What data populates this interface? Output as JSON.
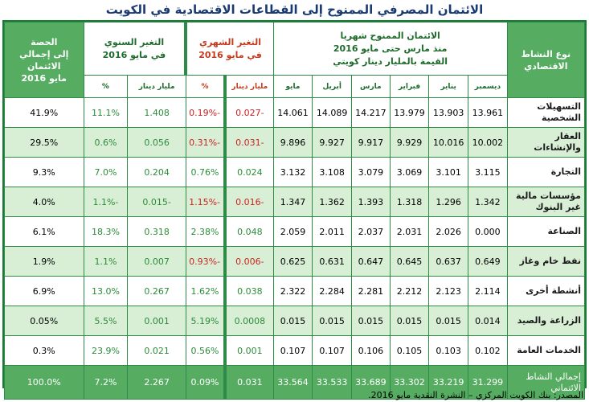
{
  "title": "الائتمان المصرفي الممنوح إلى القطاعات الاقتصادية في الكويت",
  "headers": {
    "activity": "نوع النشاط الاقتصادي",
    "monthly_credit_l1": "الائتمان الممنوح شهريا",
    "monthly_credit_l2": "منذ مارس حتى مايو 2016",
    "monthly_credit_l3": "القيمة بالمليار دينار كويتي",
    "monthly_change_l1": "التغير الشهري",
    "monthly_change_l2": "في مايو 2016",
    "annual_change_l1": "التغير السنوي",
    "annual_change_l2": "في مايو 2016",
    "share_l1": "الحصة",
    "share_l2": "إلى إجمالي الائتمان",
    "share_l3": "مايو 2016"
  },
  "months": [
    "ديسمبر",
    "يناير",
    "فبراير",
    "مارس",
    "أبريل",
    "مايو"
  ],
  "sub_headers": {
    "billion_dinar": "مليار دينار",
    "percent": "%"
  },
  "rows": [
    {
      "label": "التسهيلات الشخصية",
      "values": [
        "13.961",
        "13.903",
        "13.979",
        "14.217",
        "14.089",
        "14.061"
      ],
      "m_val": "-0.027",
      "m_pct": "-0.19%",
      "a_val": "1.408",
      "a_pct": "11.1%",
      "share": "41.9%",
      "alt": false
    },
    {
      "label": "العقار والإنشاءات",
      "values": [
        "10.002",
        "10.016",
        "9.929",
        "9.917",
        "9.927",
        "9.896"
      ],
      "m_val": "-0.031",
      "m_pct": "-0.31%",
      "a_val": "0.056",
      "a_pct": "0.6%",
      "share": "29.5%",
      "alt": true
    },
    {
      "label": "التجارة",
      "values": [
        "3.115",
        "3.101",
        "3.069",
        "3.079",
        "3.108",
        "3.132"
      ],
      "m_val": "0.024",
      "m_pct": "0.76%",
      "a_val": "0.204",
      "a_pct": "7.0%",
      "share": "9.3%",
      "alt": false
    },
    {
      "label": "مؤسسات مالية غير البنوك",
      "values": [
        "1.342",
        "1.296",
        "1.318",
        "1.393",
        "1.362",
        "1.347"
      ],
      "m_val": "-0.016",
      "m_pct": "-1.15%",
      "a_val": "-0.015",
      "a_pct": "-1.1%",
      "share": "4.0%",
      "alt": true
    },
    {
      "label": "الصناعة",
      "values": [
        "0.000",
        "2.026",
        "2.031",
        "2.037",
        "2.011",
        "2.059"
      ],
      "m_val": "0.048",
      "m_pct": "2.38%",
      "a_val": "0.318",
      "a_pct": "18.3%",
      "share": "6.1%",
      "alt": false
    },
    {
      "label": "نفط خام وغاز",
      "values": [
        "0.649",
        "0.637",
        "0.645",
        "0.647",
        "0.631",
        "0.625"
      ],
      "m_val": "-0.006",
      "m_pct": "-0.93%",
      "a_val": "0.007",
      "a_pct": "1.1%",
      "share": "1.9%",
      "alt": true
    },
    {
      "label": "أنشطة أخرى",
      "values": [
        "2.114",
        "2.123",
        "2.212",
        "2.281",
        "2.284",
        "2.322"
      ],
      "m_val": "0.038",
      "m_pct": "1.62%",
      "a_val": "0.267",
      "a_pct": "13.0%",
      "share": "6.9%",
      "alt": false
    },
    {
      "label": "الزراعة والصيد",
      "values": [
        "0.014",
        "0.015",
        "0.015",
        "0.015",
        "0.015",
        "0.015"
      ],
      "m_val": "0.0008",
      "m_pct": "5.19%",
      "a_val": "0.001",
      "a_pct": "5.5%",
      "share": "0.05%",
      "alt": true
    },
    {
      "label": "الخدمات العامة",
      "values": [
        "0.102",
        "0.103",
        "0.105",
        "0.106",
        "0.107",
        "0.107"
      ],
      "m_val": "0.001",
      "m_pct": "0.56%",
      "a_val": "0.021",
      "a_pct": "23.9%",
      "share": "0.3%",
      "alt": false
    }
  ],
  "total": {
    "label": "إجمالي النشاط الائتماني",
    "values": [
      "31.299",
      "33.219",
      "33.302",
      "33.689",
      "33.533",
      "33.564"
    ],
    "m_val": "0.031",
    "m_pct": "0.09%",
    "a_val": "2.267",
    "a_pct": "7.2%",
    "share": "100.0%"
  },
  "source": "المصدر: بنك الكويت المركزي – النشرة النقدية مايو 2016."
}
